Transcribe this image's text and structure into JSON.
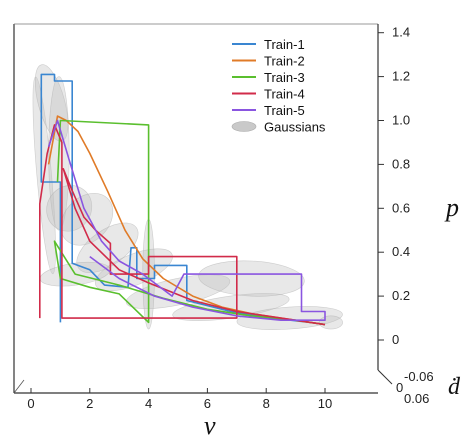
{
  "chart_data": {
    "type": "line",
    "title": "",
    "xlabel": "v",
    "ylabel": "p",
    "zlabel": "ḋ",
    "xlim": [
      0,
      10.5
    ],
    "ylim": [
      -0.1,
      1.5
    ],
    "x_ticks": [
      "0",
      "2",
      "4",
      "6",
      "8",
      "10"
    ],
    "y_ticks": [
      "0",
      "0.2",
      "0.4",
      "0.6",
      "0.8",
      "1.0",
      "1.2",
      "1.4"
    ],
    "z_ticks": [
      "-0.06",
      "0",
      "0.06"
    ],
    "legend_position": "top-right",
    "grid": false,
    "series": [
      {
        "name": "Train-1",
        "color": "#3a86d1",
        "points": [
          [
            1.0,
            0.08
          ],
          [
            1.0,
            0.72
          ],
          [
            0.35,
            0.72
          ],
          [
            0.35,
            1.21
          ],
          [
            0.8,
            1.21
          ],
          [
            0.8,
            1.18
          ],
          [
            1.4,
            1.18
          ],
          [
            1.4,
            0.35
          ],
          [
            2.0,
            0.32
          ],
          [
            2.5,
            0.25
          ],
          [
            3.3,
            0.24
          ],
          [
            3.4,
            0.42
          ],
          [
            3.6,
            0.42
          ],
          [
            3.6,
            0.28
          ],
          [
            4.2,
            0.28
          ],
          [
            4.2,
            0.34
          ],
          [
            5.3,
            0.34
          ],
          [
            5.3,
            0.18
          ],
          [
            6.8,
            0.13
          ],
          [
            8.2,
            0.1
          ],
          [
            9.5,
            0.08
          ],
          [
            10.0,
            0.07
          ]
        ]
      },
      {
        "name": "Train-2",
        "color": "#e07b28",
        "points": [
          [
            0.6,
            0.8
          ],
          [
            0.9,
            1.02
          ],
          [
            1.2,
            1.0
          ],
          [
            1.6,
            0.95
          ],
          [
            2.0,
            0.85
          ],
          [
            2.6,
            0.68
          ],
          [
            3.2,
            0.5
          ],
          [
            3.8,
            0.37
          ],
          [
            4.5,
            0.28
          ],
          [
            5.5,
            0.2
          ],
          [
            6.5,
            0.15
          ],
          [
            7.5,
            0.12
          ],
          [
            8.5,
            0.1
          ],
          [
            9.5,
            0.08
          ],
          [
            10.0,
            0.07
          ]
        ]
      },
      {
        "name": "Train-3",
        "color": "#5abf2e",
        "points": [
          [
            0.9,
            0.72
          ],
          [
            1.0,
            1.0
          ],
          [
            4.0,
            0.98
          ],
          [
            4.0,
            0.08
          ],
          [
            3.0,
            0.21
          ],
          [
            2.0,
            0.24
          ],
          [
            1.0,
            0.28
          ],
          [
            0.8,
            0.45
          ],
          [
            1.5,
            0.3
          ],
          [
            3.0,
            0.25
          ],
          [
            4.5,
            0.19
          ],
          [
            6.0,
            0.14
          ],
          [
            7.5,
            0.11
          ],
          [
            9.0,
            0.09
          ],
          [
            10.0,
            0.07
          ]
        ]
      },
      {
        "name": "Train-4",
        "color": "#d12b4a",
        "points": [
          [
            0.3,
            0.1
          ],
          [
            0.3,
            0.62
          ],
          [
            0.55,
            0.85
          ],
          [
            0.8,
            0.98
          ],
          [
            1.05,
            0.9
          ],
          [
            1.05,
            0.3
          ],
          [
            1.05,
            0.1
          ],
          [
            7.0,
            0.1
          ],
          [
            7.0,
            0.38
          ],
          [
            4.0,
            0.38
          ],
          [
            4.0,
            0.3
          ],
          [
            2.7,
            0.3
          ],
          [
            2.7,
            0.44
          ],
          [
            2.2,
            0.5
          ],
          [
            1.8,
            0.56
          ],
          [
            1.4,
            0.68
          ],
          [
            1.1,
            0.78
          ],
          [
            1.5,
            0.6
          ],
          [
            2.0,
            0.45
          ],
          [
            3.0,
            0.32
          ],
          [
            4.0,
            0.26
          ],
          [
            5.5,
            0.18
          ],
          [
            7.0,
            0.13
          ],
          [
            8.5,
            0.1
          ],
          [
            10.0,
            0.07
          ]
        ]
      },
      {
        "name": "Train-5",
        "color": "#8a55e0",
        "points": [
          [
            0.6,
            0.88
          ],
          [
            0.9,
            1.0
          ],
          [
            1.3,
            0.82
          ],
          [
            1.8,
            0.6
          ],
          [
            2.4,
            0.45
          ],
          [
            3.0,
            0.36
          ],
          [
            3.8,
            0.3
          ],
          [
            4.8,
            0.2
          ],
          [
            5.2,
            0.3
          ],
          [
            9.2,
            0.3
          ],
          [
            9.2,
            0.13
          ],
          [
            10.0,
            0.13
          ],
          [
            10.0,
            0.09
          ],
          [
            8.5,
            0.09
          ],
          [
            7.0,
            0.11
          ],
          [
            5.5,
            0.15
          ],
          [
            4.2,
            0.2
          ],
          [
            3.0,
            0.28
          ],
          [
            2.0,
            0.38
          ]
        ]
      }
    ],
    "gaussians": {
      "name": "Gaussians",
      "color": "#bdbdbd",
      "ellipses": [
        {
          "cx": 0.45,
          "cy": 0.75,
          "rx": 0.25,
          "ry": 0.45,
          "angle": -5
        },
        {
          "cx": 0.7,
          "cy": 1.08,
          "rx": 0.45,
          "ry": 0.18,
          "angle": -15
        },
        {
          "cx": 0.95,
          "cy": 0.85,
          "rx": 0.35,
          "ry": 0.35,
          "angle": 0
        },
        {
          "cx": 1.3,
          "cy": 0.6,
          "rx": 0.8,
          "ry": 0.1,
          "angle": -50
        },
        {
          "cx": 1.9,
          "cy": 0.55,
          "rx": 1.0,
          "ry": 0.1,
          "angle": -45
        },
        {
          "cx": 2.6,
          "cy": 0.42,
          "rx": 1.2,
          "ry": 0.08,
          "angle": -35
        },
        {
          "cx": 3.5,
          "cy": 0.32,
          "rx": 1.4,
          "ry": 0.07,
          "angle": -22
        },
        {
          "cx": 5.0,
          "cy": 0.22,
          "rx": 1.8,
          "ry": 0.06,
          "angle": -12
        },
        {
          "cx": 6.8,
          "cy": 0.15,
          "rx": 2.0,
          "ry": 0.05,
          "angle": -8
        },
        {
          "cx": 8.8,
          "cy": 0.1,
          "rx": 1.8,
          "ry": 0.05,
          "angle": -4
        },
        {
          "cx": 10.2,
          "cy": 0.08,
          "rx": 0.4,
          "ry": 0.03,
          "angle": 0
        },
        {
          "cx": 1.5,
          "cy": 0.3,
          "rx": 1.2,
          "ry": 0.05,
          "angle": -8
        },
        {
          "cx": 4.0,
          "cy": 0.3,
          "rx": 0.2,
          "ry": 0.25,
          "angle": 0
        },
        {
          "cx": 7.5,
          "cy": 0.28,
          "rx": 1.8,
          "ry": 0.08,
          "angle": 3
        }
      ]
    }
  }
}
